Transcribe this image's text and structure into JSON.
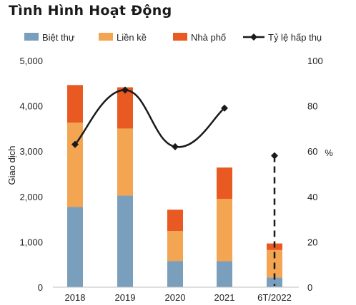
{
  "chart_data": {
    "type": "bar",
    "title": "Tình Hình Hoạt Động",
    "ylabel": "Giao dịch",
    "y2label": "%",
    "ylim": [
      0,
      5000
    ],
    "y2lim": [
      0,
      100
    ],
    "yticks": [
      "0",
      "1,000",
      "2,000",
      "3,000",
      "4,000",
      "5,000"
    ],
    "y2ticks": [
      "0",
      "20",
      "40",
      "60",
      "80",
      "100"
    ],
    "categories": [
      "2018",
      "2019",
      "2020",
      "2021",
      "6T/2022"
    ],
    "stacked": true,
    "series": [
      {
        "name": "Biệt thự",
        "type": "bar",
        "color": "#7a9fbd",
        "values": [
          1770,
          2020,
          580,
          575,
          215
        ]
      },
      {
        "name": "Liền kề",
        "type": "bar",
        "color": "#f3a552",
        "values": [
          1860,
          1480,
          660,
          1375,
          605
        ]
      },
      {
        "name": "Nhà phố",
        "type": "bar",
        "color": "#e85a22",
        "values": [
          830,
          910,
          470,
          690,
          145
        ]
      },
      {
        "name": "Tỷ lệ hấp thụ",
        "type": "line",
        "axis": "right",
        "color": "#1a1a1a",
        "values": [
          63,
          87,
          62,
          79,
          58
        ]
      }
    ],
    "legend_position": "top",
    "grid": false
  }
}
